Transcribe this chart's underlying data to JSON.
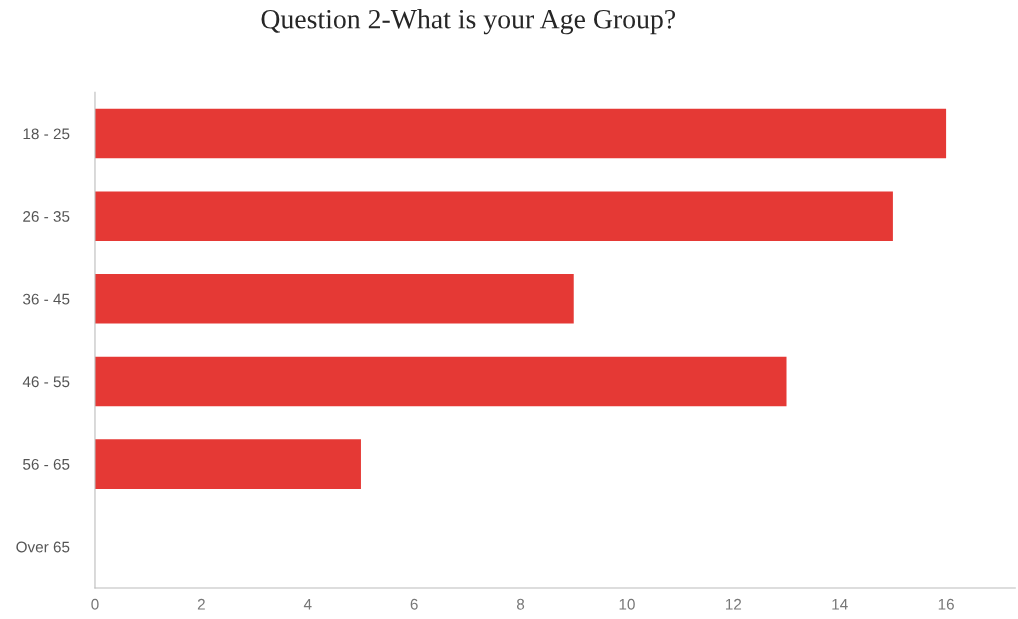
{
  "chart_data": {
    "type": "bar",
    "title": "Question 2-What is your Age Group?",
    "orientation": "horizontal",
    "categories": [
      "18 - 25",
      "26 - 35",
      "36 - 45",
      "46 - 55",
      "56 - 65",
      "Over 65"
    ],
    "values": [
      16,
      15,
      9,
      13,
      5,
      0
    ],
    "color": "#e53935",
    "xlim": [
      0,
      17.3
    ],
    "xticks": [
      0,
      2,
      4,
      6,
      8,
      10,
      12,
      14,
      16
    ],
    "grid": false,
    "legend": false
  }
}
